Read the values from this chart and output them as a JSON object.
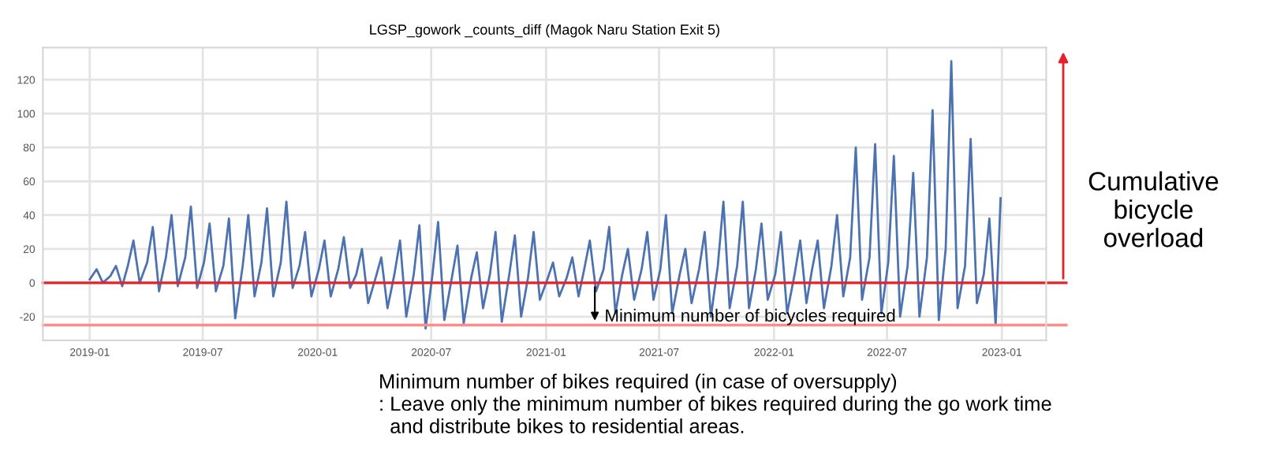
{
  "chart_data": {
    "type": "line",
    "title": "LGSP_gowork _counts_diff (Magok Naru Station Exit 5)",
    "x": [
      "2019-01-01",
      "2019-01-12",
      "2019-01-22",
      "2019-02-03",
      "2019-02-12",
      "2019-02-22",
      "2019-03-03",
      "2019-03-12",
      "2019-03-22",
      "2019-04-03",
      "2019-04-12",
      "2019-04-22",
      "2019-05-03",
      "2019-05-12",
      "2019-05-22",
      "2019-06-03",
      "2019-06-12",
      "2019-06-22",
      "2019-07-03",
      "2019-07-12",
      "2019-07-22",
      "2019-08-03",
      "2019-08-12",
      "2019-08-22",
      "2019-09-03",
      "2019-09-12",
      "2019-09-22",
      "2019-10-03",
      "2019-10-12",
      "2019-10-22",
      "2019-11-03",
      "2019-11-12",
      "2019-11-22",
      "2019-12-03",
      "2019-12-12",
      "2019-12-22",
      "2020-01-03",
      "2020-01-12",
      "2020-01-22",
      "2020-02-03",
      "2020-02-12",
      "2020-02-22",
      "2020-03-03",
      "2020-03-12",
      "2020-03-22",
      "2020-04-03",
      "2020-04-12",
      "2020-04-22",
      "2020-05-03",
      "2020-05-12",
      "2020-05-22",
      "2020-06-03",
      "2020-06-12",
      "2020-06-22",
      "2020-07-03",
      "2020-07-12",
      "2020-07-22",
      "2020-08-03",
      "2020-08-12",
      "2020-08-22",
      "2020-09-03",
      "2020-09-12",
      "2020-09-22",
      "2020-10-03",
      "2020-10-12",
      "2020-10-22",
      "2020-11-03",
      "2020-11-12",
      "2020-11-22",
      "2020-12-03",
      "2020-12-12",
      "2020-12-22",
      "2021-01-03",
      "2021-01-12",
      "2021-01-22",
      "2021-02-03",
      "2021-02-12",
      "2021-02-22",
      "2021-03-03",
      "2021-03-12",
      "2021-03-22",
      "2021-04-03",
      "2021-04-12",
      "2021-04-22",
      "2021-05-03",
      "2021-05-12",
      "2021-05-22",
      "2021-06-03",
      "2021-06-12",
      "2021-06-22",
      "2021-07-03",
      "2021-07-12",
      "2021-07-22",
      "2021-08-03",
      "2021-08-12",
      "2021-08-22",
      "2021-09-03",
      "2021-09-12",
      "2021-09-22",
      "2021-10-03",
      "2021-10-12",
      "2021-10-22",
      "2021-11-03",
      "2021-11-12",
      "2021-11-22",
      "2021-12-03",
      "2021-12-12",
      "2021-12-22",
      "2022-01-03",
      "2022-01-12",
      "2022-01-22",
      "2022-02-03",
      "2022-02-12",
      "2022-02-22",
      "2022-03-03",
      "2022-03-12",
      "2022-03-22",
      "2022-04-03",
      "2022-04-12",
      "2022-04-22",
      "2022-05-03",
      "2022-05-12",
      "2022-05-22",
      "2022-06-03",
      "2022-06-12",
      "2022-06-22",
      "2022-07-03",
      "2022-07-12",
      "2022-07-22",
      "2022-08-03",
      "2022-08-12",
      "2022-08-22",
      "2022-09-03",
      "2022-09-12",
      "2022-09-22",
      "2022-10-03",
      "2022-10-12",
      "2022-10-22",
      "2022-11-03",
      "2022-11-12",
      "2022-11-22",
      "2022-12-03",
      "2022-12-12",
      "2022-12-22",
      "2022-12-30"
    ],
    "series": [
      {
        "color": "#4c72b0",
        "values": [
          2,
          8,
          0,
          4,
          10,
          -2,
          10,
          25,
          0,
          12,
          33,
          -5,
          15,
          40,
          -2,
          15,
          45,
          -3,
          12,
          35,
          -5,
          10,
          38,
          -21,
          10,
          40,
          -8,
          12,
          44,
          -8,
          12,
          48,
          -3,
          10,
          30,
          -8,
          8,
          25,
          -8,
          8,
          27,
          -3,
          5,
          20,
          -12,
          3,
          15,
          -15,
          5,
          25,
          -20,
          5,
          34,
          -27,
          5,
          36,
          -22,
          3,
          22,
          -24,
          3,
          18,
          -15,
          5,
          30,
          -23,
          5,
          28,
          -20,
          3,
          30,
          -10,
          2,
          12,
          -8,
          3,
          15,
          -8,
          8,
          25,
          -5,
          8,
          33,
          -18,
          5,
          20,
          -10,
          8,
          30,
          -10,
          8,
          40,
          -18,
          5,
          20,
          -12,
          8,
          30,
          -20,
          10,
          48,
          -15,
          10,
          48,
          -15,
          8,
          35,
          -10,
          5,
          30,
          -18,
          5,
          25,
          -12,
          8,
          25,
          -15,
          10,
          40,
          -8,
          15,
          80,
          -10,
          15,
          82,
          -18,
          12,
          75,
          -20,
          10,
          65,
          -20,
          15,
          102,
          -22,
          20,
          131,
          -15,
          10,
          85,
          -12,
          5,
          38,
          -25,
          50
        ]
      }
    ],
    "xlim": [
      "2018-10-18",
      "2023-03-13"
    ],
    "xticks": [
      "2019-01",
      "2019-07",
      "2020-01",
      "2020-07",
      "2021-01",
      "2021-07",
      "2022-01",
      "2022-07",
      "2023-01"
    ],
    "ylim": [
      -34,
      139
    ],
    "yticks": [
      -20,
      0,
      20,
      40,
      60,
      80,
      100,
      120
    ],
    "grid": true,
    "legend": false,
    "marker": "none",
    "line_style": "solid",
    "ref_lines": [
      {
        "axis": "y",
        "value": 0,
        "color": "#e8202a"
      },
      {
        "axis": "y",
        "value": -25,
        "color": "#ff8a8a"
      }
    ],
    "annotations": [
      {
        "text": "Minimum number of bicycles required",
        "x": "2021-03-20",
        "y": -25
      },
      "Cumulative bicycle overload",
      "Minimum number of bikes required (in case of oversupply)\n: Leave only the minimum number of bikes required during the go work time\n  and distribute bikes to residential areas."
    ]
  }
}
